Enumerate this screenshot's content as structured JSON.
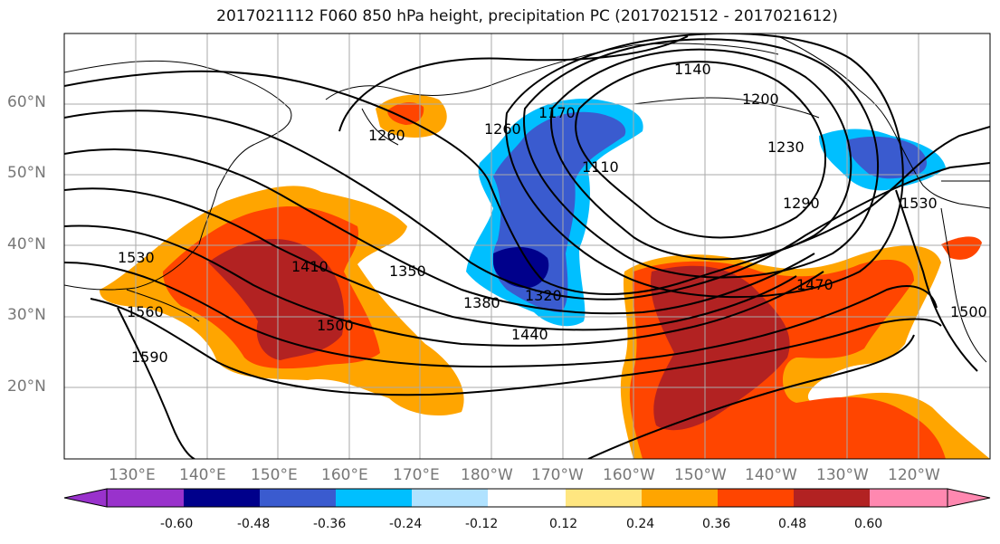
{
  "title": "2017021112 F060 850 hPa height, precipitation PC (2017021512 - 2017021612)",
  "lat_labels": [
    "60°N",
    "50°N",
    "40°N",
    "30°N",
    "20°N"
  ],
  "lon_labels": [
    "130°E",
    "140°E",
    "150°E",
    "160°E",
    "170°E",
    "180°W",
    "170°W",
    "160°W",
    "150°W",
    "140°W",
    "130°W",
    "120°W"
  ],
  "contour_labels": [
    "1140",
    "1200",
    "1230",
    "1260",
    "1260",
    "1170",
    "1110",
    "1290",
    "1350",
    "1410",
    "1380",
    "1320",
    "1440",
    "1500",
    "1530",
    "1560",
    "1590",
    "1470",
    "1530",
    "1500"
  ],
  "colorbar": {
    "ticks": [
      "-0.60",
      "-0.48",
      "-0.36",
      "-0.24",
      "-0.12",
      "0.12",
      "0.24",
      "0.36",
      "0.48",
      "0.60"
    ],
    "colors": [
      "#9932CC",
      "#00008B",
      "#3A5BCF",
      "#00BFFF",
      "#B0E2FF",
      "#FFFFFF",
      "#FFE680",
      "#FFA500",
      "#FF4500",
      "#B22222",
      "#FF88B0"
    ]
  },
  "colors": {
    "land_outline": "#000000",
    "grid": "#aaaaaa",
    "contour": "#000000"
  }
}
